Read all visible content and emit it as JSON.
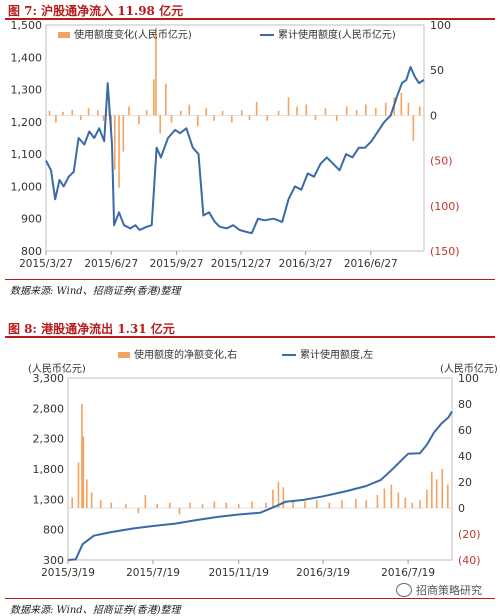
{
  "figures": [
    {
      "title": "图 7:  沪股通净流入 11.98 亿元",
      "source": "数据来源:  Wind、招商证券(香港)整理"
    },
    {
      "title": "图 8:  港股通净流出 1.31 亿元",
      "source": "数据来源:  Wind、招商证券(香港)整理"
    }
  ],
  "watermark": "招商策略研究",
  "chart_data": [
    {
      "type": "bar+line",
      "title": "",
      "legend": [
        "使用额度变化(人民币亿元)",
        "累计使用额度(人民币亿元)"
      ],
      "legend_placement": "top",
      "x_ticks": [
        "2015/3/27",
        "2015/6/27",
        "2015/9/27",
        "2015/12/27",
        "2016/3/27",
        "2016/6/27"
      ],
      "x_range": [
        "2015/3/27",
        "2016/9/10"
      ],
      "y_left": {
        "range": [
          800,
          1500
        ],
        "ticks": [
          "800",
          "900",
          "1,000",
          "1,100",
          "1,200",
          "1,300",
          "1,400",
          "1,500"
        ]
      },
      "y_right": {
        "range": [
          -150,
          100
        ],
        "ticks": [
          "100",
          "50",
          "0",
          "(50)",
          "(100)",
          "(150)"
        ]
      },
      "colors": {
        "bars": "#f5a25d",
        "line": "#3a6aa8",
        "negative_ticks": "#c0392b"
      },
      "series": [
        {
          "name": "累计使用额度(人民币亿元)",
          "axis": "left",
          "points": [
            [
              "2015/3/27",
              1080
            ],
            [
              "2015/4/3",
              1050
            ],
            [
              "2015/4/9",
              960
            ],
            [
              "2015/4/15",
              1020
            ],
            [
              "2015/4/21",
              1000
            ],
            [
              "2015/4/28",
              1030
            ],
            [
              "2015/5/5",
              1045
            ],
            [
              "2015/5/12",
              1150
            ],
            [
              "2015/5/20",
              1130
            ],
            [
              "2015/5/27",
              1170
            ],
            [
              "2015/6/3",
              1150
            ],
            [
              "2015/6/10",
              1180
            ],
            [
              "2015/6/17",
              1140
            ],
            [
              "2015/6/22",
              1320
            ],
            [
              "2015/6/28",
              1130
            ],
            [
              "2015/7/1",
              880
            ],
            [
              "2015/7/8",
              920
            ],
            [
              "2015/7/15",
              880
            ],
            [
              "2015/7/24",
              870
            ],
            [
              "2015/7/31",
              880
            ],
            [
              "2015/8/6",
              865
            ],
            [
              "2015/8/16",
              875
            ],
            [
              "2015/8/23",
              880
            ],
            [
              "2015/8/30",
              1120
            ],
            [
              "2015/9/5",
              1090
            ],
            [
              "2015/9/15",
              1150
            ],
            [
              "2015/9/25",
              1175
            ],
            [
              "2015/10/2",
              1165
            ],
            [
              "2015/10/11",
              1180
            ],
            [
              "2015/10/20",
              1120
            ],
            [
              "2015/10/28",
              1100
            ],
            [
              "2015/11/4",
              910
            ],
            [
              "2015/11/12",
              920
            ],
            [
              "2015/11/20",
              890
            ],
            [
              "2015/11/27",
              875
            ],
            [
              "2015/12/7",
              870
            ],
            [
              "2015/12/16",
              880
            ],
            [
              "2015/12/25",
              865
            ],
            [
              "2016/1/2",
              860
            ],
            [
              "2016/1/11",
              855
            ],
            [
              "2016/1/20",
              900
            ],
            [
              "2016/1/29",
              895
            ],
            [
              "2016/2/11",
              900
            ],
            [
              "2016/2/23",
              890
            ],
            [
              "2016/3/3",
              960
            ],
            [
              "2016/3/12",
              1000
            ],
            [
              "2016/3/21",
              990
            ],
            [
              "2016/3/30",
              1040
            ],
            [
              "2016/4/8",
              1030
            ],
            [
              "2016/4/17",
              1070
            ],
            [
              "2016/4/26",
              1090
            ],
            [
              "2016/5/5",
              1070
            ],
            [
              "2016/5/14",
              1050
            ],
            [
              "2016/5/23",
              1100
            ],
            [
              "2016/6/1",
              1090
            ],
            [
              "2016/6/10",
              1120
            ],
            [
              "2016/6/19",
              1120
            ],
            [
              "2016/6/28",
              1140
            ],
            [
              "2016/7/7",
              1170
            ],
            [
              "2016/7/16",
              1200
            ],
            [
              "2016/7/25",
              1220
            ],
            [
              "2016/8/3",
              1280
            ],
            [
              "2016/8/10",
              1320
            ],
            [
              "2016/8/16",
              1330
            ],
            [
              "2016/8/22",
              1370
            ],
            [
              "2016/8/28",
              1340
            ],
            [
              "2016/9/3",
              1320
            ],
            [
              "2016/9/10",
              1330
            ]
          ]
        },
        {
          "name": "使用额度变化(人民币亿元)",
          "axis": "right",
          "type": "bar",
          "points": [
            [
              "2015/4/1",
              5
            ],
            [
              "2015/4/10",
              -8
            ],
            [
              "2015/4/20",
              4
            ],
            [
              "2015/5/3",
              6
            ],
            [
              "2015/5/15",
              -5
            ],
            [
              "2015/5/26",
              8
            ],
            [
              "2015/6/8",
              6
            ],
            [
              "2015/6/16",
              -6
            ],
            [
              "2015/6/20",
              12
            ],
            [
              "2015/6/24",
              20
            ],
            [
              "2015/6/27",
              -25
            ],
            [
              "2015/7/2",
              -60
            ],
            [
              "2015/7/8",
              -80
            ],
            [
              "2015/7/14",
              -40
            ],
            [
              "2015/7/22",
              10
            ],
            [
              "2015/8/5",
              -10
            ],
            [
              "2015/8/16",
              6
            ],
            [
              "2015/8/26",
              40
            ],
            [
              "2015/8/29",
              97
            ],
            [
              "2015/9/4",
              -20
            ],
            [
              "2015/9/12",
              35
            ],
            [
              "2015/9/20",
              -8
            ],
            [
              "2015/10/3",
              5
            ],
            [
              "2015/10/15",
              12
            ],
            [
              "2015/10/27",
              -12
            ],
            [
              "2015/11/8",
              8
            ],
            [
              "2015/11/19",
              -6
            ],
            [
              "2015/12/1",
              5
            ],
            [
              "2015/12/14",
              -8
            ],
            [
              "2015/12/28",
              6
            ],
            [
              "2016/1/8",
              -5
            ],
            [
              "2016/1/18",
              15
            ],
            [
              "2016/2/2",
              -6
            ],
            [
              "2016/2/18",
              5
            ],
            [
              "2016/3/3",
              20
            ],
            [
              "2016/3/15",
              10
            ],
            [
              "2016/3/28",
              12
            ],
            [
              "2016/4/10",
              -5
            ],
            [
              "2016/4/24",
              8
            ],
            [
              "2016/5/10",
              -6
            ],
            [
              "2016/5/24",
              10
            ],
            [
              "2016/6/7",
              6
            ],
            [
              "2016/6/20",
              12
            ],
            [
              "2016/7/4",
              8
            ],
            [
              "2016/7/18",
              14
            ],
            [
              "2016/7/30",
              20
            ],
            [
              "2016/8/9",
              25
            ],
            [
              "2016/8/19",
              14
            ],
            [
              "2016/8/26",
              -28
            ],
            [
              "2016/9/4",
              10
            ]
          ]
        }
      ]
    },
    {
      "type": "bar+line",
      "title": "",
      "legend": [
        "使用额度的净额变化,右",
        "累计使用额度,左"
      ],
      "legend_placement": "top",
      "left_unit": "(人民币亿元)",
      "right_unit": "(人民币亿元)",
      "x_ticks": [
        "2015/3/19",
        "2015/7/19",
        "2015/11/19",
        "2016/3/19",
        "2016/7/19"
      ],
      "x_range": [
        "2015/3/19",
        "2016/9/20"
      ],
      "y_left": {
        "range": [
          300,
          3300
        ],
        "ticks": [
          "300",
          "800",
          "1,300",
          "1,800",
          "2,300",
          "2,800",
          "3,300"
        ]
      },
      "y_right": {
        "range": [
          -40,
          100
        ],
        "ticks": [
          "100",
          "80",
          "60",
          "40",
          "20",
          "0",
          "(20)",
          "(40)"
        ]
      },
      "colors": {
        "bars": "#f5a25d",
        "line": "#3a6aa8",
        "negative_ticks": "#c0392b"
      },
      "series": [
        {
          "name": "累计使用额度,左",
          "axis": "left",
          "points": [
            [
              "2015/3/19",
              300
            ],
            [
              "2015/3/30",
              310
            ],
            [
              "2015/4/9",
              560
            ],
            [
              "2015/4/25",
              700
            ],
            [
              "2015/5/20",
              760
            ],
            [
              "2015/6/20",
              820
            ],
            [
              "2015/7/19",
              860
            ],
            [
              "2015/8/20",
              900
            ],
            [
              "2015/9/20",
              960
            ],
            [
              "2015/10/20",
              1010
            ],
            [
              "2015/11/19",
              1050
            ],
            [
              "2015/12/20",
              1080
            ],
            [
              "2016/1/10",
              1180
            ],
            [
              "2016/1/25",
              1260
            ],
            [
              "2016/2/20",
              1290
            ],
            [
              "2016/3/19",
              1350
            ],
            [
              "2016/4/20",
              1430
            ],
            [
              "2016/5/20",
              1520
            ],
            [
              "2016/6/10",
              1620
            ],
            [
              "2016/6/25",
              1780
            ],
            [
              "2016/7/10",
              1950
            ],
            [
              "2016/7/19",
              2050
            ],
            [
              "2016/8/5",
              2060
            ],
            [
              "2016/8/15",
              2200
            ],
            [
              "2016/8/25",
              2400
            ],
            [
              "2016/9/5",
              2550
            ],
            [
              "2016/9/15",
              2650
            ],
            [
              "2016/9/20",
              2750
            ]
          ]
        },
        {
          "name": "使用额度的净额变化,右",
          "axis": "right",
          "type": "bar",
          "points": [
            [
              "2015/3/25",
              8
            ],
            [
              "2015/4/3",
              35
            ],
            [
              "2015/4/8",
              80
            ],
            [
              "2015/4/10",
              55
            ],
            [
              "2015/4/15",
              22
            ],
            [
              "2015/4/22",
              12
            ],
            [
              "2015/5/5",
              6
            ],
            [
              "2015/5/20",
              4
            ],
            [
              "2015/6/10",
              3
            ],
            [
              "2015/6/28",
              -4
            ],
            [
              "2015/7/8",
              10
            ],
            [
              "2015/7/25",
              3
            ],
            [
              "2015/8/12",
              4
            ],
            [
              "2015/8/26",
              -5
            ],
            [
              "2015/9/10",
              4
            ],
            [
              "2015/9/28",
              3
            ],
            [
              "2015/10/15",
              5
            ],
            [
              "2015/11/1",
              4
            ],
            [
              "2015/11/19",
              3
            ],
            [
              "2015/12/8",
              5
            ],
            [
              "2015/12/28",
              4
            ],
            [
              "2016/1/7",
              14
            ],
            [
              "2016/1/15",
              20
            ],
            [
              "2016/1/22",
              16
            ],
            [
              "2016/2/5",
              6
            ],
            [
              "2016/2/22",
              5
            ],
            [
              "2016/3/10",
              6
            ],
            [
              "2016/3/28",
              4
            ],
            [
              "2016/4/15",
              6
            ],
            [
              "2016/5/5",
              7
            ],
            [
              "2016/5/20",
              6
            ],
            [
              "2016/6/5",
              10
            ],
            [
              "2016/6/15",
              15
            ],
            [
              "2016/6/25",
              18
            ],
            [
              "2016/7/5",
              12
            ],
            [
              "2016/7/15",
              8
            ],
            [
              "2016/7/25",
              4
            ],
            [
              "2016/8/5",
              6
            ],
            [
              "2016/8/15",
              14
            ],
            [
              "2016/8/22",
              28
            ],
            [
              "2016/8/29",
              22
            ],
            [
              "2016/9/6",
              30
            ],
            [
              "2016/9/14",
              18
            ]
          ]
        }
      ]
    }
  ]
}
